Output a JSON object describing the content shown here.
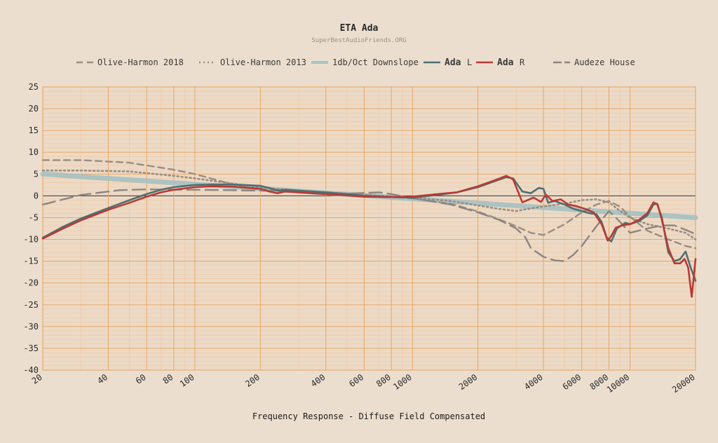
{
  "chart_data": {
    "type": "line",
    "title": "ETA Ada",
    "subtitle": "SuperBestAudioFriends.ORG",
    "xlabel": "Frequency Response - Diffuse Field Compensated",
    "ylabel": "",
    "x_scale": "log",
    "xlim": [
      20,
      20000
    ],
    "ylim": [
      -40,
      25
    ],
    "y_ticks": [
      25,
      20,
      15,
      10,
      5,
      0,
      -5,
      -10,
      -15,
      -20,
      -25,
      -30,
      -35,
      -40
    ],
    "x_ticks": [
      20,
      40,
      60,
      80,
      100,
      200,
      400,
      600,
      800,
      1000,
      2000,
      4000,
      6000,
      8000,
      10000,
      20000
    ],
    "grid": true,
    "legend_position": "top",
    "legend": [
      {
        "label": "Olive-Harmon 2018",
        "series": "Olive-Harmon 2018"
      },
      {
        "label": "Olive-Harmon 2013",
        "series": "Olive-Harmon 2013"
      },
      {
        "label": "1db/Oct Downslope",
        "series": "1db/Oct Downslope"
      },
      {
        "label": "Ada",
        "suffix": "L",
        "series": "Ada L"
      },
      {
        "label": "Ada",
        "suffix": "R",
        "series": "Ada R"
      },
      {
        "label": "Audeze House",
        "series": "Audeze House"
      }
    ],
    "series": [
      {
        "name": "Olive-Harmon 2018",
        "color": "#9a8d83",
        "style": "dashed",
        "x": [
          20,
          30,
          50,
          80,
          100,
          150,
          200,
          300,
          500,
          800,
          1000,
          1500,
          2000,
          2500,
          3000,
          3500,
          4000,
          5000,
          6000,
          7000,
          8000,
          9000,
          10000,
          12000,
          15000,
          18000,
          20000
        ],
        "y": [
          8.2,
          8.2,
          7.6,
          6.0,
          5.0,
          2.6,
          1.4,
          1.0,
          0.4,
          -0.2,
          -0.6,
          -1.8,
          -3.6,
          -5.4,
          -7.0,
          -8.5,
          -9.0,
          -6.5,
          -3.8,
          -2.0,
          -1.2,
          -2.5,
          -4.8,
          -8.0,
          -10.0,
          -11.5,
          -12.0
        ]
      },
      {
        "name": "Olive-Harmon 2013",
        "color": "#9a8d83",
        "style": "dotted",
        "x": [
          20,
          30,
          50,
          80,
          100,
          150,
          200,
          300,
          500,
          800,
          1000,
          1500,
          2000,
          2500,
          3000,
          4000,
          5000,
          6000,
          7000,
          8000,
          9000,
          10000,
          12000,
          15000,
          18000,
          20000
        ],
        "y": [
          5.8,
          5.8,
          5.6,
          4.6,
          4.0,
          2.8,
          1.9,
          1.2,
          0.5,
          -0.1,
          -0.4,
          -1.2,
          -2.2,
          -3.0,
          -3.5,
          -2.4,
          -1.8,
          -1.0,
          -0.8,
          -1.5,
          -3.5,
          -5.0,
          -6.5,
          -7.5,
          -8.5,
          -10.0
        ]
      },
      {
        "name": "1db/Oct Downslope",
        "color": "#a9c2c2",
        "style": "solid",
        "x": [
          20,
          20000
        ],
        "y": [
          5.0,
          -5.0
        ]
      },
      {
        "name": "Ada L",
        "color": "#4f6f70",
        "style": "solid",
        "x": [
          20,
          25,
          30,
          40,
          50,
          60,
          70,
          80,
          100,
          120,
          150,
          200,
          220,
          240,
          260,
          300,
          400,
          500,
          600,
          800,
          1000,
          1300,
          1600,
          2000,
          2400,
          2700,
          2900,
          3200,
          3500,
          3800,
          4000,
          4200,
          4500,
          5000,
          5500,
          6000,
          6500,
          7000,
          7400,
          7800,
          8200,
          8700,
          9500,
          10000,
          11000,
          12000,
          12800,
          13300,
          14000,
          15000,
          16000,
          17000,
          18000,
          19000,
          20000
        ],
        "y": [
          -9.6,
          -7.0,
          -5.2,
          -2.8,
          -1.0,
          0.4,
          1.4,
          2.0,
          2.5,
          2.6,
          2.6,
          2.3,
          1.8,
          1.2,
          1.4,
          1.2,
          0.8,
          0.4,
          0.0,
          -0.3,
          -0.4,
          0.2,
          0.8,
          2.0,
          3.4,
          4.3,
          4.0,
          1.0,
          0.6,
          1.8,
          1.6,
          -1.6,
          -1.2,
          -2.0,
          -3.0,
          -3.5,
          -4.0,
          -4.2,
          -6.0,
          -9.5,
          -10.5,
          -7.5,
          -6.2,
          -6.5,
          -5.8,
          -4.5,
          -2.0,
          -1.8,
          -5.0,
          -13.0,
          -15.0,
          -14.5,
          -12.8,
          -16.5,
          -19.5
        ]
      },
      {
        "name": "Ada R",
        "color": "#b83a36",
        "style": "solid",
        "x": [
          20,
          25,
          30,
          40,
          50,
          60,
          70,
          80,
          100,
          120,
          150,
          200,
          220,
          240,
          260,
          300,
          400,
          500,
          600,
          800,
          1000,
          1300,
          1600,
          2000,
          2400,
          2700,
          2900,
          3200,
          3600,
          3900,
          4100,
          4400,
          4800,
          5200,
          5700,
          6200,
          6800,
          7400,
          7900,
          8200,
          8600,
          9200,
          10000,
          11000,
          12000,
          12800,
          13400,
          14000,
          15000,
          16000,
          17000,
          17800,
          18500,
          19200,
          20000
        ],
        "y": [
          -9.8,
          -7.4,
          -5.6,
          -3.2,
          -1.6,
          -0.2,
          0.8,
          1.4,
          2.0,
          2.2,
          2.1,
          1.6,
          1.0,
          0.6,
          1.0,
          0.8,
          0.4,
          0.1,
          -0.2,
          -0.3,
          -0.2,
          0.4,
          0.8,
          2.2,
          3.6,
          4.6,
          3.8,
          -1.5,
          -0.4,
          -1.4,
          0.3,
          -1.2,
          -0.8,
          -2.0,
          -2.4,
          -3.0,
          -3.8,
          -6.5,
          -10.3,
          -9.2,
          -7.3,
          -6.8,
          -6.5,
          -5.5,
          -4.0,
          -1.5,
          -2.0,
          -5.5,
          -12.0,
          -15.5,
          -15.5,
          -14.5,
          -16.5,
          -23.2,
          -14.5
        ]
      },
      {
        "name": "Audeze House",
        "color": "#8e8580",
        "style": "longdash",
        "x": [
          20,
          30,
          45,
          60,
          80,
          100,
          150,
          200,
          300,
          500,
          700,
          800,
          1000,
          1500,
          2000,
          2500,
          3000,
          3300,
          3500,
          4000,
          4500,
          5000,
          5500,
          6000,
          7000,
          8000,
          9000,
          10000,
          12000,
          14000,
          16000,
          18000,
          20000
        ],
        "y": [
          -2.0,
          0.2,
          1.3,
          1.5,
          1.4,
          1.4,
          1.3,
          1.2,
          1.0,
          0.5,
          0.8,
          0.4,
          -0.5,
          -2.0,
          -3.8,
          -5.5,
          -7.5,
          -9.5,
          -12.0,
          -14.0,
          -14.8,
          -15.0,
          -13.5,
          -11.5,
          -7.0,
          -3.5,
          -6.0,
          -8.5,
          -7.5,
          -6.8,
          -6.8,
          -7.8,
          -8.8
        ]
      }
    ]
  }
}
